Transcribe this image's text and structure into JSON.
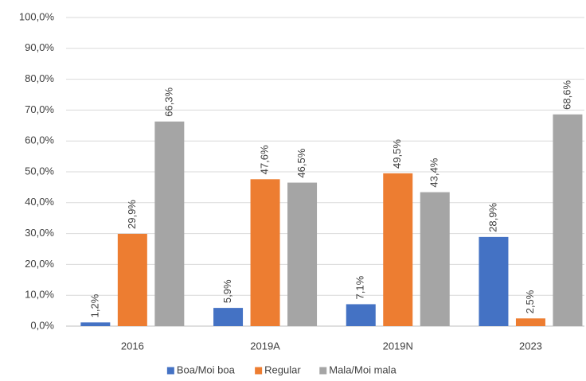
{
  "chart_data": {
    "type": "bar",
    "categories": [
      "2016",
      "2019A",
      "2019N",
      "2023"
    ],
    "series": [
      {
        "name": "Boa/Moi boa",
        "color": "#4472c4",
        "values": [
          1.2,
          5.9,
          7.1,
          28.9
        ],
        "value_labels": [
          "1,2%",
          "5,9%",
          "7,1%",
          "28,9%"
        ]
      },
      {
        "name": "Regular",
        "color": "#ed7d31",
        "values": [
          29.9,
          47.6,
          49.5,
          2.5
        ],
        "value_labels": [
          "29,9%",
          "47,6%",
          "49,5%",
          "2,5%"
        ]
      },
      {
        "name": "Mala/Moi mala",
        "color": "#a5a5a5",
        "values": [
          66.3,
          46.5,
          43.4,
          68.6
        ],
        "value_labels": [
          "66,3%",
          "46,5%",
          "43,4%",
          "68,6%"
        ]
      }
    ],
    "ylim": [
      0,
      100
    ],
    "yticks": [
      {
        "value": 0,
        "label": "0,0%"
      },
      {
        "value": 10,
        "label": "10,0%"
      },
      {
        "value": 20,
        "label": "20,0%"
      },
      {
        "value": 30,
        "label": "30,0%"
      },
      {
        "value": 40,
        "label": "40,0%"
      },
      {
        "value": 50,
        "label": "50,0%"
      },
      {
        "value": 60,
        "label": "60,0%"
      },
      {
        "value": 70,
        "label": "70,0%"
      },
      {
        "value": 80,
        "label": "80,0%"
      },
      {
        "value": 90,
        "label": "90,0%"
      },
      {
        "value": 100,
        "label": "100,0%"
      }
    ],
    "grid": true,
    "legend": "bottom"
  }
}
